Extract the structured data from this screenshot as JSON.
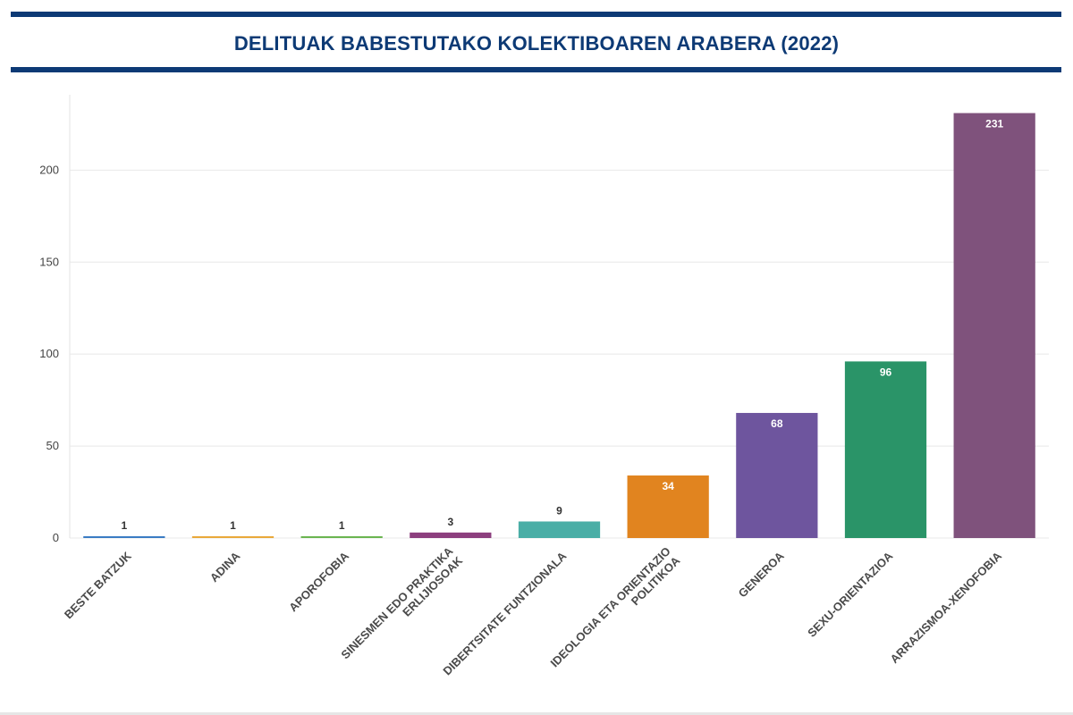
{
  "chart_data": {
    "type": "bar",
    "title": "DELITUAK BABESTUTAKO KOLEKTIBOAREN ARABERA (2022)",
    "categories": [
      "BESTE BATZUK",
      "ADINA",
      "APOROFOBIA",
      "SINESMEN EDO PRAKTIKA ERLIJIOSOAK",
      "DIBERTSITATE FUNTZIONALA",
      "IDEOLOGIA ETA ORIENTAZIO POLITIKOA",
      "GENEROA",
      "SEXU-ORIENTAZIOA",
      "ARRAZISMOA-XENOFOBIA"
    ],
    "category_lines": [
      [
        "BESTE BATZUK"
      ],
      [
        "ADINA"
      ],
      [
        "APOROFOBIA"
      ],
      [
        "SINESMEN EDO PRAKTIKA",
        "ERLIJIOSOAK"
      ],
      [
        "DIBERTSITATE FUNTZIONALA"
      ],
      [
        "IDEOLOGIA ETA ORIENTAZIO",
        "POLITIKOA"
      ],
      [
        "GENEROA"
      ],
      [
        "SEXU-ORIENTAZIOA"
      ],
      [
        "ARRAZISMOA-XENOFOBIA"
      ]
    ],
    "values": [
      1,
      1,
      1,
      3,
      9,
      34,
      68,
      96,
      231
    ],
    "colors": [
      "#3b7cc4",
      "#e9a93b",
      "#6bb551",
      "#8c3f7e",
      "#4aaea6",
      "#e1841f",
      "#6e559e",
      "#2a9468",
      "#7f527c"
    ],
    "ylim": [
      0,
      240
    ],
    "yticks": [
      0,
      50,
      100,
      150,
      200
    ],
    "grid": true,
    "xlabel": "",
    "ylabel": ""
  }
}
